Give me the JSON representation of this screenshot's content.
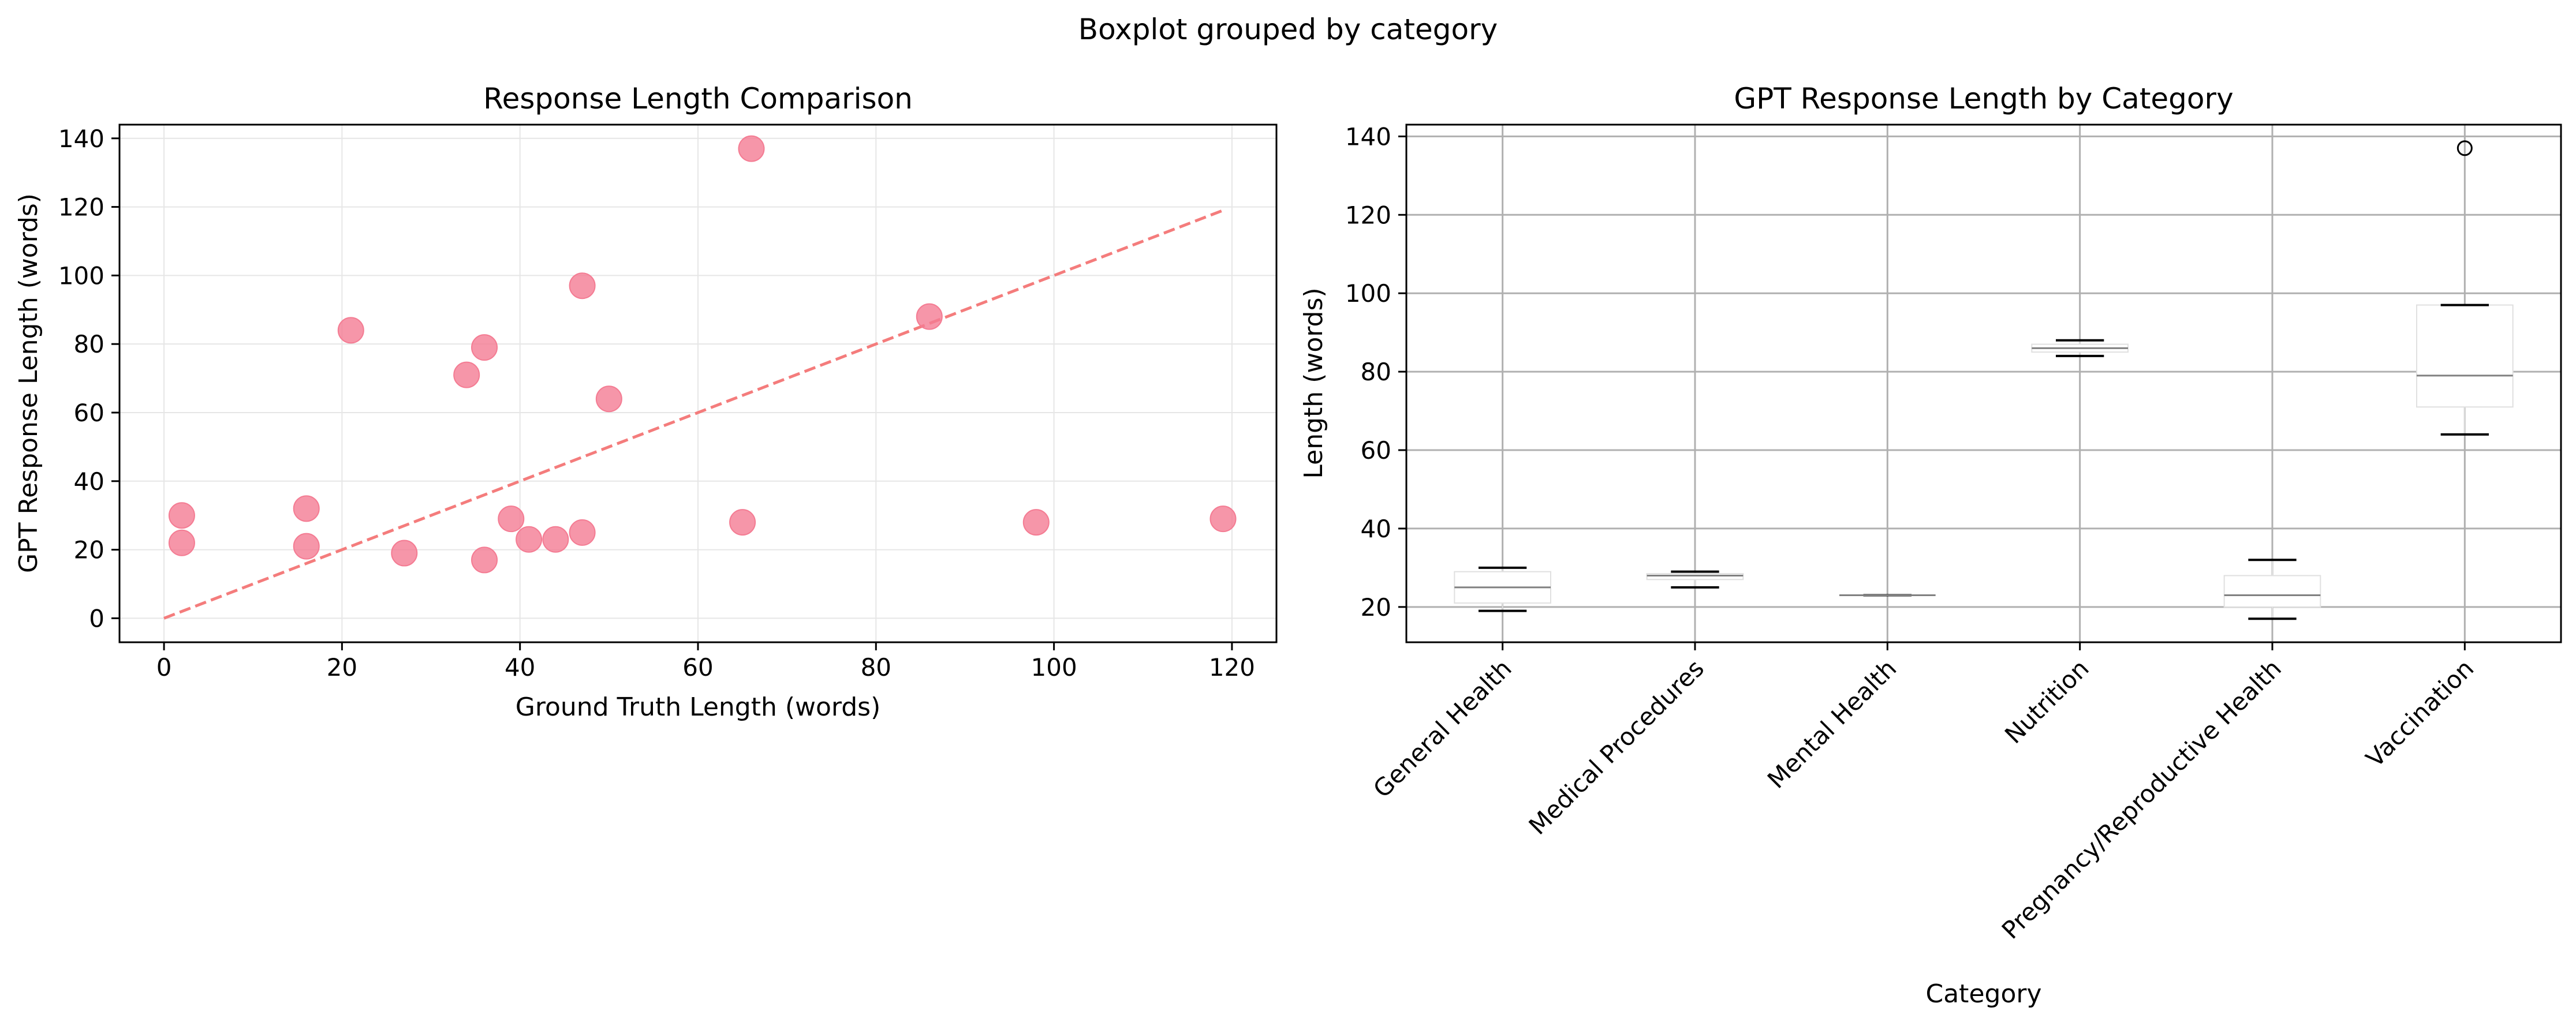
{
  "figure": {
    "suptitle": "Boxplot grouped by category"
  },
  "chart_data": [
    {
      "type": "scatter",
      "title": "Response Length Comparison",
      "xlabel": "Ground Truth Length (words)",
      "ylabel": "GPT Response Length (words)",
      "xlim": [
        -5,
        125
      ],
      "ylim": [
        -7,
        144
      ],
      "xticks": [
        0,
        20,
        40,
        60,
        80,
        100,
        120
      ],
      "yticks": [
        0,
        20,
        40,
        60,
        80,
        100,
        120,
        140
      ],
      "grid": true,
      "point_color": "#f47c93",
      "reference_line": {
        "x": [
          0,
          119
        ],
        "y": [
          0,
          119
        ],
        "color": "#f47c7c",
        "style": "dashed"
      },
      "points": [
        {
          "x": 2,
          "y": 30
        },
        {
          "x": 2,
          "y": 22
        },
        {
          "x": 16,
          "y": 32
        },
        {
          "x": 16,
          "y": 21
        },
        {
          "x": 21,
          "y": 84
        },
        {
          "x": 27,
          "y": 19
        },
        {
          "x": 34,
          "y": 71
        },
        {
          "x": 36,
          "y": 79
        },
        {
          "x": 36,
          "y": 17
        },
        {
          "x": 39,
          "y": 29
        },
        {
          "x": 41,
          "y": 23
        },
        {
          "x": 44,
          "y": 23
        },
        {
          "x": 47,
          "y": 97
        },
        {
          "x": 47,
          "y": 25
        },
        {
          "x": 50,
          "y": 64
        },
        {
          "x": 65,
          "y": 28
        },
        {
          "x": 66,
          "y": 137
        },
        {
          "x": 86,
          "y": 88
        },
        {
          "x": 98,
          "y": 28
        },
        {
          "x": 119,
          "y": 29
        }
      ]
    },
    {
      "type": "box",
      "title": "GPT Response Length by Category",
      "xlabel": "Category",
      "ylabel": "Length (words)",
      "ylim": [
        11,
        143
      ],
      "yticks": [
        20,
        40,
        60,
        80,
        100,
        120,
        140
      ],
      "grid": true,
      "categories": [
        "General Health",
        "Medical Procedures",
        "Mental Health",
        "Nutrition",
        "Pregnancy/Reproductive Health",
        "Vaccination"
      ],
      "boxes": [
        {
          "whislo": 19,
          "q1": 21,
          "med": 25,
          "q3": 29,
          "whishi": 30,
          "fliers": []
        },
        {
          "whislo": 25,
          "q1": 27,
          "med": 28,
          "q3": 28.5,
          "whishi": 29,
          "fliers": []
        },
        {
          "whislo": 23,
          "q1": 23,
          "med": 23,
          "q3": 23,
          "whishi": 23,
          "fliers": []
        },
        {
          "whislo": 84,
          "q1": 85,
          "med": 86,
          "q3": 87,
          "whishi": 88,
          "fliers": []
        },
        {
          "whislo": 17,
          "q1": 20,
          "med": 23,
          "q3": 28,
          "whishi": 32,
          "fliers": []
        },
        {
          "whislo": 64,
          "q1": 71,
          "med": 79,
          "q3": 97,
          "whishi": 97,
          "fliers": [
            137
          ]
        }
      ]
    }
  ]
}
